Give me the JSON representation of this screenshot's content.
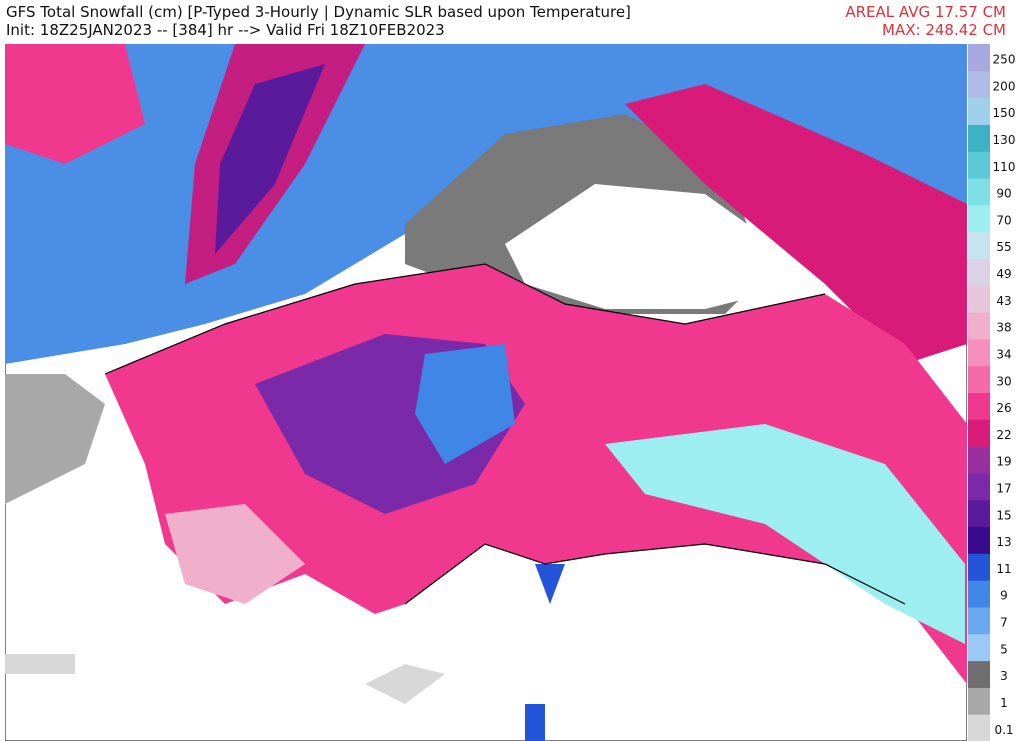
{
  "header": {
    "title": "GFS Total Snowfall (cm) [P-Typed 3-Hourly | Dynamic SLR based upon Temperature]",
    "subtitle": "Init: 18Z25JAN2023 -- [384] hr --> Valid Fri 18Z10FEB2023",
    "areal_avg": "AREAL AVG 17.57 CM",
    "max": "MAX: 248.42 CM"
  },
  "colorbar": {
    "ticks": [
      0.1,
      1,
      3,
      5,
      7,
      9,
      11,
      13,
      15,
      17,
      19,
      22,
      26,
      30,
      34,
      38,
      43,
      49,
      55,
      70,
      90,
      110,
      130,
      150,
      200,
      250
    ],
    "colors": [
      "#d8d8d8",
      "#a8a8a8",
      "#6e6e6e",
      "#9bc8f5",
      "#6aa8ee",
      "#3f86e6",
      "#2454d8",
      "#3a0a8c",
      "#5a1a9c",
      "#7a2aa8",
      "#99309f",
      "#d81b78",
      "#f0388e",
      "#f56aa8",
      "#f590be",
      "#f0b0cc",
      "#e8c6dc",
      "#dcd2e6",
      "#c6e4ee",
      "#9ceef0",
      "#7ee0e6",
      "#5ccad6",
      "#3cb2c2",
      "#a0d0ec",
      "#b0bce8",
      "#a8a8e0"
    ]
  }
}
